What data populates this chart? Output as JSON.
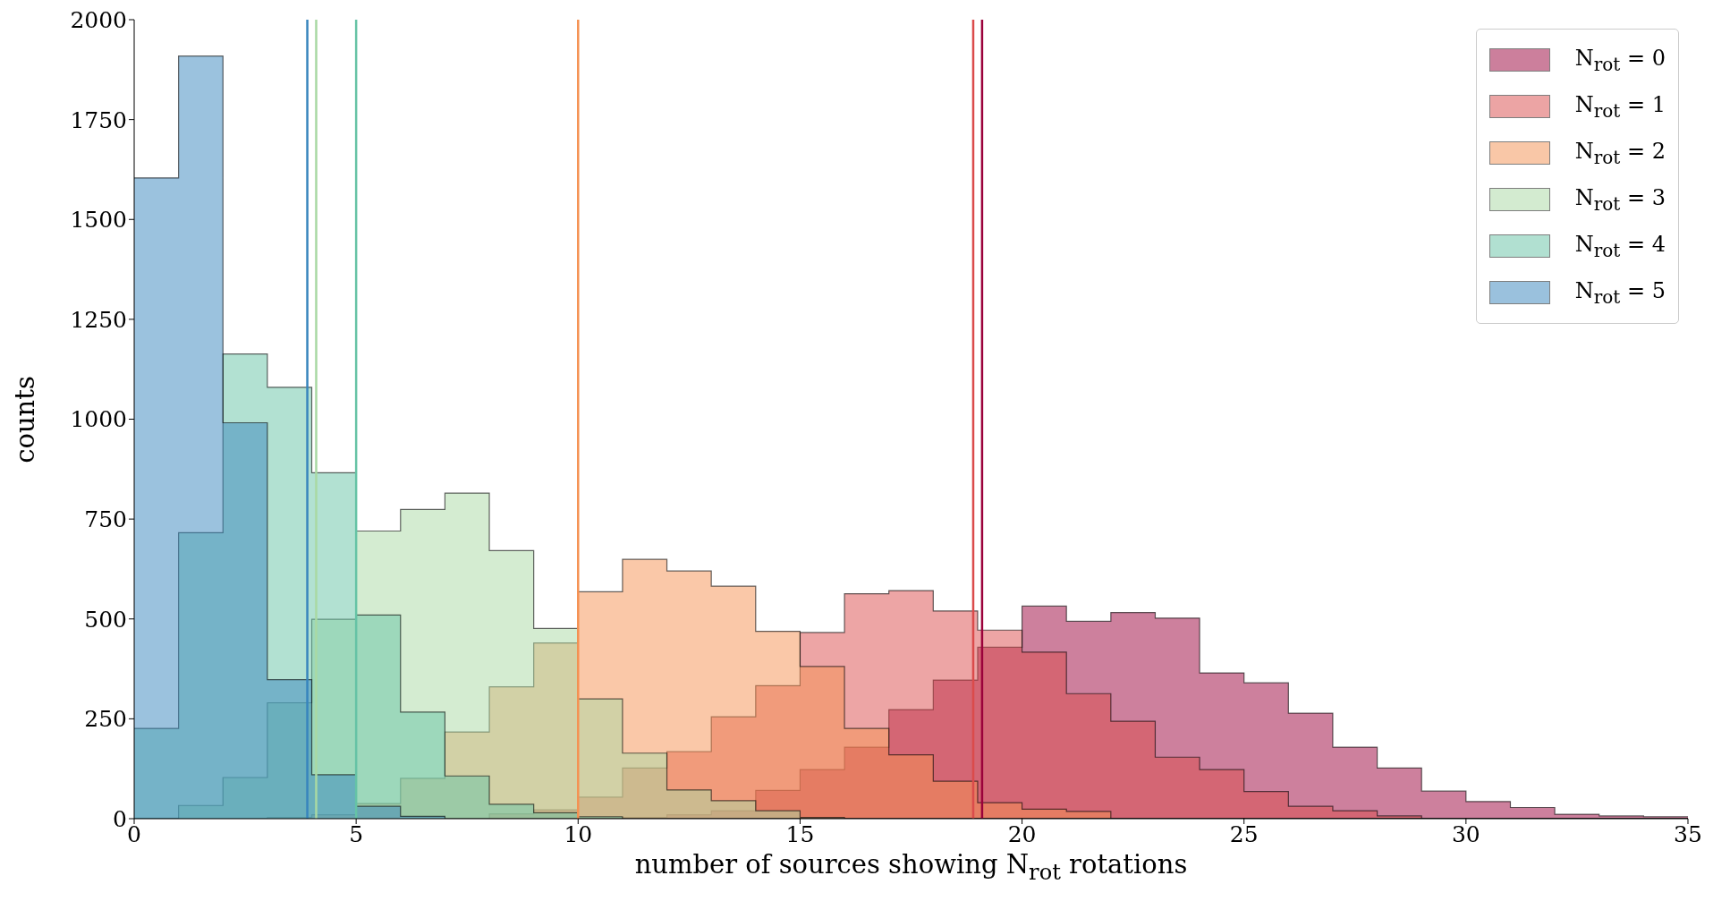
{
  "chart_data": {
    "type": "histogram",
    "xlabel": "number of sources showing N$_{rot}$ rotations",
    "ylabel": "counts",
    "bins": [
      0,
      1,
      2,
      3,
      4,
      5,
      6,
      7,
      8,
      9,
      10,
      11,
      12,
      13,
      14,
      15,
      16,
      17,
      18,
      19,
      20,
      21,
      22,
      23,
      24,
      25,
      26,
      27,
      28,
      29,
      30,
      31,
      32,
      33,
      34,
      35
    ],
    "series": [
      {
        "name": "N$_{rot}$ = 0",
        "color": "#9b013b",
        "values": [
          0,
          0,
          0,
          0,
          0,
          0,
          0,
          0,
          0,
          0,
          0,
          3,
          10,
          20,
          71,
          123,
          179,
          273,
          347,
          429,
          532,
          494,
          516,
          502,
          365,
          340,
          264,
          179,
          127,
          69,
          43,
          28,
          11,
          7,
          5
        ]
      },
      {
        "name": "N$_{rot}$ = 1",
        "color": "#db4b4b",
        "values": [
          0,
          0,
          0,
          0,
          0,
          0,
          0,
          0,
          12,
          22,
          54,
          127,
          168,
          255,
          333,
          466,
          563,
          571,
          520,
          472,
          417,
          313,
          244,
          154,
          123,
          68,
          31,
          20,
          7,
          0,
          0,
          0,
          0,
          0,
          0
        ]
      },
      {
        "name": "N$_{rot}$ = 2",
        "color": "#f59151",
        "values": [
          0,
          0,
          0,
          3,
          10,
          38,
          101,
          217,
          330,
          440,
          568,
          649,
          620,
          582,
          469,
          381,
          226,
          160,
          94,
          40,
          24,
          18,
          0,
          0,
          0,
          0,
          0,
          0,
          0,
          0,
          0,
          0,
          0,
          0,
          0
        ]
      },
      {
        "name": "N$_{rot}$ = 3",
        "color": "#a9d9a3",
        "values": [
          0,
          33,
          103,
          290,
          499,
          720,
          774,
          815,
          671,
          476,
          300,
          164,
          72,
          45,
          20,
          3,
          0,
          0,
          0,
          0,
          0,
          0,
          0,
          0,
          0,
          0,
          0,
          0,
          0,
          0,
          0,
          0,
          0,
          0,
          0
        ]
      },
      {
        "name": "N$_{rot}$ = 4",
        "color": "#65c3a5",
        "values": [
          226,
          716,
          1163,
          1080,
          866,
          510,
          267,
          107,
          36,
          15,
          5,
          0,
          0,
          0,
          0,
          0,
          0,
          0,
          0,
          0,
          0,
          0,
          0,
          0,
          0,
          0,
          0,
          0,
          0,
          0,
          0,
          0,
          0,
          0,
          0
        ]
      },
      {
        "name": "N$_{rot}$ = 5",
        "color": "#3785bd",
        "values": [
          1604,
          1909,
          991,
          348,
          110,
          31,
          6,
          0,
          0,
          0,
          0,
          0,
          0,
          0,
          0,
          0,
          0,
          0,
          0,
          0,
          0,
          0,
          0,
          0,
          0,
          0,
          0,
          0,
          0,
          0,
          0,
          0,
          0,
          0,
          0
        ]
      }
    ],
    "ref_lines": [
      {
        "axis": "x",
        "value": 19.1,
        "color": "#9b013b"
      },
      {
        "axis": "x",
        "value": 18.9,
        "color": "#db4b4b"
      },
      {
        "axis": "x",
        "value": 10.0,
        "color": "#f59151"
      },
      {
        "axis": "x",
        "value": 4.1,
        "color": "#a9d9a3"
      },
      {
        "axis": "x",
        "value": 5.0,
        "color": "#65c3a5"
      },
      {
        "axis": "x",
        "value": 3.9,
        "color": "#3785bd"
      }
    ],
    "xlim": [
      0,
      35
    ],
    "xticks": [
      0,
      5,
      10,
      15,
      20,
      25,
      30,
      35
    ],
    "ylim": [
      0,
      2000
    ],
    "yticks": [
      0,
      250,
      500,
      750,
      1000,
      1250,
      1500,
      1750,
      2000
    ],
    "legend": "top right"
  }
}
